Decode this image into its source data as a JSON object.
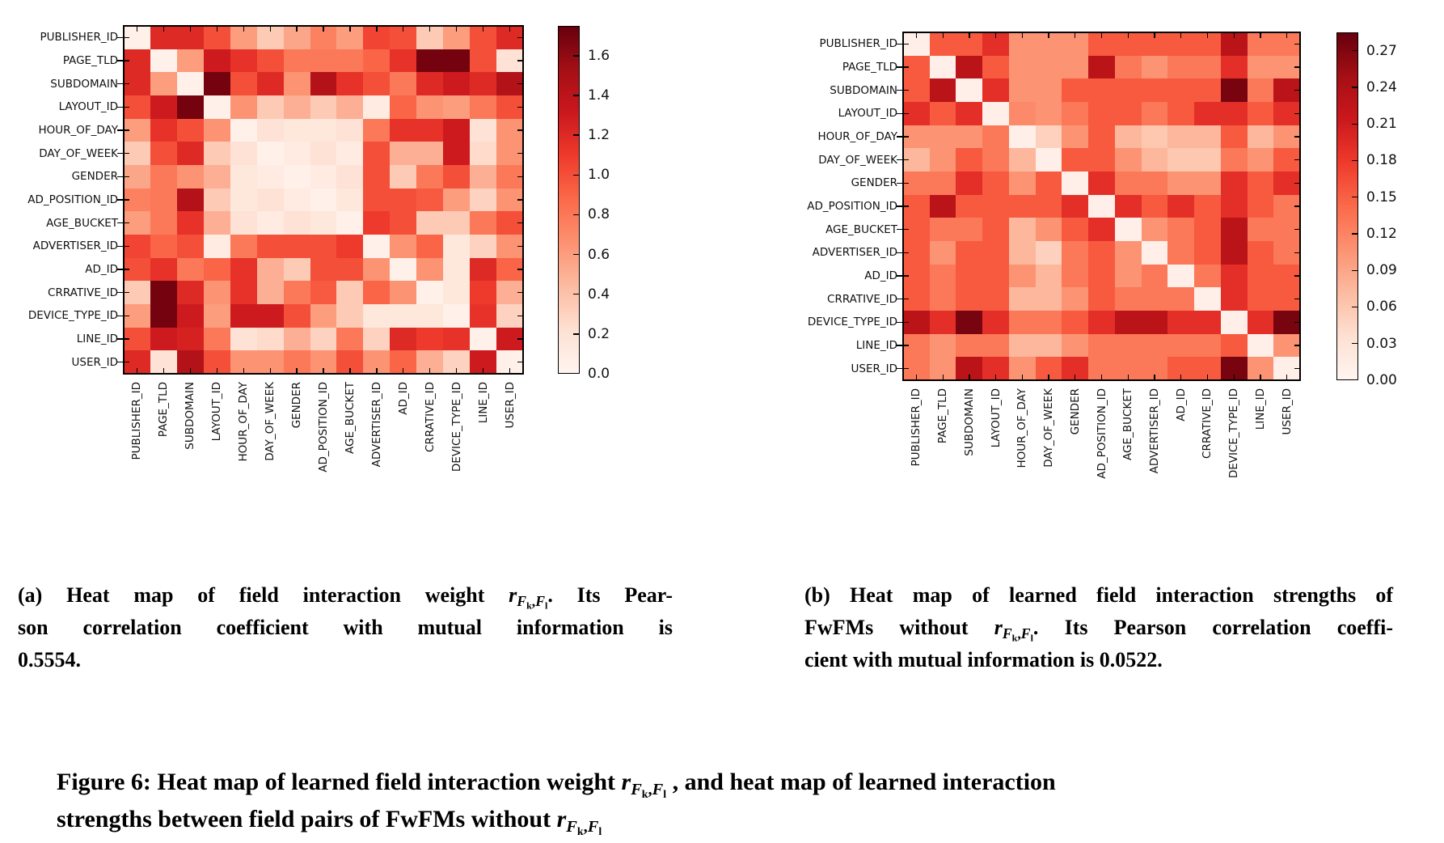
{
  "figure": {
    "math": {
      "r": "r",
      "F": "F",
      "k": "k",
      "l": "l",
      "comma": ","
    },
    "caption_a": {
      "line1_pre": "(a) Heat map of field interaction weight ",
      "line1_post": ". Its Pear-",
      "line2": "son correlation coefficient with mutual information is",
      "line3": "0.5554."
    },
    "caption_b": {
      "line1": "(b) Heat map of learned field interaction strengths of",
      "line2_pre": "FwFMs without ",
      "line2_post": ". Its Pearson correlation coeffi-",
      "line3": "cient with mutual information is 0.0522."
    },
    "main_caption": {
      "line1_pre": "Figure 6: Heat map of learned field interaction weight ",
      "line1_post": " , and heat map of learned interaction",
      "line2_pre": "strengths between field pairs of FwFMs without "
    }
  },
  "chart_data": [
    {
      "type": "heatmap",
      "panel": "a",
      "title": "Heat map of field interaction weight r_{Fk,Fl}",
      "colormap": "Reds",
      "vmin": 0.0,
      "vmax": 1.75,
      "legend_position": "right-colorbar",
      "grid": false,
      "colorbar_ticks": [
        1.6,
        1.4,
        1.2,
        1.0,
        0.8,
        0.6,
        0.4,
        0.2,
        0.0
      ],
      "colorbar_tick_labels": [
        "1.6",
        "1.4",
        "1.2",
        "1.0",
        "0.8",
        "0.6",
        "0.4",
        "0.2",
        "0.0"
      ],
      "row_labels": [
        "PUBLISHER_ID",
        "PAGE_TLD",
        "SUBDOMAIN",
        "LAYOUT_ID",
        "HOUR_OF_DAY",
        "DAY_OF_WEEK",
        "GENDER",
        "AD_POSITION_ID",
        "AGE_BUCKET",
        "ADVERTISER_ID",
        "AD_ID",
        "CRRATIVE_ID",
        "DEVICE_TYPE_ID",
        "LINE_ID",
        "USER_ID"
      ],
      "col_labels": [
        "PUBLISHER_ID",
        "PAGE_TLD",
        "SUBDOMAIN",
        "LAYOUT_ID",
        "HOUR_OF_DAY",
        "DAY_OF_WEEK",
        "GENDER",
        "AD_POSITION_ID",
        "AGE_BUCKET",
        "ADVERTISER_ID",
        "AD_ID",
        "CRRATIVE_ID",
        "DEVICE_TYPE_ID",
        "LINE_ID",
        "USER_ID"
      ],
      "matrix": [
        [
          0.05,
          1.2,
          1.2,
          1.0,
          0.6,
          0.35,
          0.55,
          0.75,
          0.6,
          1.05,
          1.0,
          0.35,
          0.6,
          1.0,
          1.2
        ],
        [
          1.2,
          0.05,
          0.6,
          1.3,
          1.15,
          1.0,
          0.8,
          0.8,
          0.8,
          0.9,
          1.15,
          1.7,
          1.7,
          1.0,
          0.2
        ],
        [
          1.2,
          0.6,
          0.05,
          1.7,
          1.0,
          1.2,
          0.65,
          1.45,
          1.15,
          1.0,
          0.8,
          1.2,
          1.3,
          1.2,
          1.45
        ],
        [
          1.0,
          1.3,
          1.7,
          0.05,
          0.65,
          0.35,
          0.5,
          0.35,
          0.5,
          0.1,
          0.9,
          0.65,
          0.6,
          0.8,
          1.0
        ],
        [
          0.6,
          1.15,
          1.0,
          0.65,
          0.05,
          0.2,
          0.15,
          0.15,
          0.2,
          0.8,
          1.15,
          1.15,
          1.3,
          0.2,
          0.65
        ],
        [
          0.35,
          1.0,
          1.2,
          0.35,
          0.2,
          0.05,
          0.1,
          0.2,
          0.1,
          1.0,
          0.5,
          0.5,
          1.3,
          0.25,
          0.65
        ],
        [
          0.55,
          0.8,
          0.65,
          0.5,
          0.15,
          0.1,
          0.05,
          0.1,
          0.2,
          1.0,
          0.35,
          0.8,
          1.0,
          0.5,
          0.8
        ],
        [
          0.75,
          0.8,
          1.45,
          0.35,
          0.15,
          0.2,
          0.1,
          0.05,
          0.15,
          1.0,
          1.0,
          0.95,
          0.6,
          0.3,
          0.65
        ],
        [
          0.6,
          0.8,
          1.15,
          0.5,
          0.2,
          0.1,
          0.2,
          0.15,
          0.05,
          1.1,
          1.0,
          0.35,
          0.35,
          0.8,
          1.0
        ],
        [
          1.05,
          0.9,
          1.0,
          0.1,
          0.8,
          1.0,
          1.0,
          1.0,
          1.1,
          0.05,
          0.65,
          0.9,
          0.15,
          0.3,
          0.65
        ],
        [
          1.0,
          1.15,
          0.8,
          0.9,
          1.15,
          0.5,
          0.35,
          1.0,
          1.0,
          0.65,
          0.05,
          0.65,
          0.15,
          1.2,
          0.9
        ],
        [
          0.35,
          1.7,
          1.2,
          0.65,
          1.15,
          0.5,
          0.8,
          0.95,
          0.35,
          0.9,
          0.65,
          0.05,
          0.15,
          1.1,
          0.5
        ],
        [
          0.6,
          1.7,
          1.3,
          0.6,
          1.3,
          1.3,
          1.0,
          0.6,
          0.35,
          0.15,
          0.15,
          0.15,
          0.05,
          1.15,
          0.3
        ],
        [
          1.0,
          1.3,
          1.25,
          0.8,
          0.2,
          0.25,
          0.5,
          0.3,
          0.8,
          0.3,
          1.2,
          1.1,
          1.15,
          0.05,
          1.3
        ],
        [
          1.2,
          0.2,
          1.45,
          1.0,
          0.65,
          0.65,
          0.8,
          0.65,
          1.0,
          0.65,
          0.9,
          0.5,
          0.3,
          1.3,
          0.05
        ]
      ]
    },
    {
      "type": "heatmap",
      "panel": "b",
      "title": "Heat map of learned field interaction strengths of FwFMs without r_{Fk,Fl}",
      "colormap": "Reds",
      "vmin": 0.0,
      "vmax": 0.285,
      "legend_position": "right-colorbar",
      "grid": false,
      "colorbar_ticks": [
        0.27,
        0.24,
        0.21,
        0.18,
        0.15,
        0.12,
        0.09,
        0.06,
        0.03,
        0.0
      ],
      "colorbar_tick_labels": [
        "0.27",
        "0.24",
        "0.21",
        "0.18",
        "0.15",
        "0.12",
        "0.09",
        "0.06",
        "0.03",
        "0.00"
      ],
      "row_labels": [
        "PUBLISHER_ID",
        "PAGE_TLD",
        "SUBDOMAIN",
        "LAYOUT_ID",
        "HOUR_OF_DAY",
        "DAY_OF_WEEK",
        "GENDER",
        "AD_POSITION_ID",
        "AGE_BUCKET",
        "ADVERTISER_ID",
        "AD_ID",
        "CRRATIVE_ID",
        "DEVICE_TYPE_ID",
        "LINE_ID",
        "USER_ID"
      ],
      "col_labels": [
        "PUBLISHER_ID",
        "PAGE_TLD",
        "SUBDOMAIN",
        "LAYOUT_ID",
        "HOUR_OF_DAY",
        "DAY_OF_WEEK",
        "GENDER",
        "AD_POSITION_ID",
        "AGE_BUCKET",
        "ADVERTISER_ID",
        "AD_ID",
        "CRRATIVE_ID",
        "DEVICE_TYPE_ID",
        "LINE_ID",
        "USER_ID"
      ],
      "matrix": [
        [
          0.01,
          0.155,
          0.155,
          0.19,
          0.105,
          0.105,
          0.105,
          0.155,
          0.155,
          0.155,
          0.155,
          0.155,
          0.23,
          0.13,
          0.13
        ],
        [
          0.155,
          0.01,
          0.23,
          0.155,
          0.105,
          0.105,
          0.105,
          0.23,
          0.13,
          0.105,
          0.13,
          0.13,
          0.19,
          0.105,
          0.105
        ],
        [
          0.155,
          0.23,
          0.01,
          0.19,
          0.105,
          0.105,
          0.155,
          0.155,
          0.155,
          0.155,
          0.155,
          0.155,
          0.275,
          0.13,
          0.23
        ],
        [
          0.19,
          0.155,
          0.19,
          0.01,
          0.115,
          0.105,
          0.13,
          0.155,
          0.155,
          0.13,
          0.155,
          0.19,
          0.19,
          0.155,
          0.19
        ],
        [
          0.105,
          0.105,
          0.105,
          0.13,
          0.01,
          0.05,
          0.105,
          0.155,
          0.075,
          0.06,
          0.075,
          0.075,
          0.155,
          0.075,
          0.105
        ],
        [
          0.075,
          0.105,
          0.155,
          0.13,
          0.075,
          0.01,
          0.155,
          0.155,
          0.105,
          0.075,
          0.06,
          0.06,
          0.13,
          0.105,
          0.155
        ],
        [
          0.13,
          0.13,
          0.19,
          0.155,
          0.105,
          0.155,
          0.01,
          0.19,
          0.13,
          0.13,
          0.105,
          0.105,
          0.19,
          0.155,
          0.19
        ],
        [
          0.155,
          0.23,
          0.155,
          0.155,
          0.155,
          0.155,
          0.19,
          0.01,
          0.19,
          0.155,
          0.19,
          0.155,
          0.19,
          0.155,
          0.13
        ],
        [
          0.155,
          0.13,
          0.13,
          0.155,
          0.075,
          0.105,
          0.155,
          0.19,
          0.01,
          0.105,
          0.13,
          0.155,
          0.23,
          0.13,
          0.13
        ],
        [
          0.155,
          0.105,
          0.155,
          0.155,
          0.075,
          0.05,
          0.13,
          0.155,
          0.105,
          0.01,
          0.13,
          0.155,
          0.23,
          0.155,
          0.13
        ],
        [
          0.155,
          0.13,
          0.155,
          0.155,
          0.105,
          0.075,
          0.13,
          0.155,
          0.105,
          0.13,
          0.01,
          0.13,
          0.19,
          0.155,
          0.155
        ],
        [
          0.155,
          0.13,
          0.155,
          0.155,
          0.075,
          0.075,
          0.105,
          0.155,
          0.13,
          0.13,
          0.13,
          0.01,
          0.19,
          0.155,
          0.155
        ],
        [
          0.23,
          0.19,
          0.275,
          0.19,
          0.13,
          0.13,
          0.155,
          0.19,
          0.23,
          0.23,
          0.19,
          0.19,
          0.01,
          0.19,
          0.275
        ],
        [
          0.13,
          0.105,
          0.13,
          0.13,
          0.075,
          0.075,
          0.105,
          0.13,
          0.13,
          0.13,
          0.13,
          0.13,
          0.155,
          0.01,
          0.105
        ],
        [
          0.13,
          0.105,
          0.23,
          0.19,
          0.105,
          0.155,
          0.19,
          0.13,
          0.13,
          0.13,
          0.155,
          0.155,
          0.275,
          0.105,
          0.01
        ]
      ]
    }
  ]
}
